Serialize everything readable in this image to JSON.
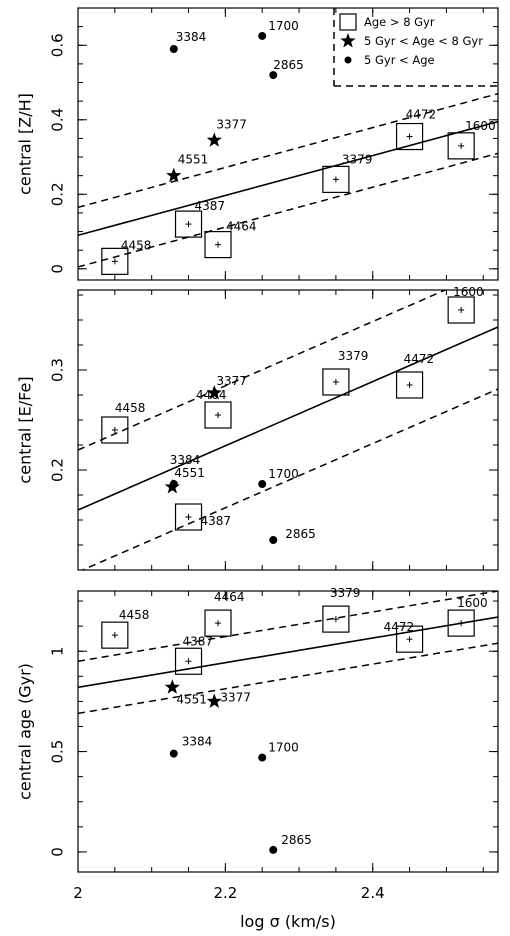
{
  "chart_data": [
    {
      "type": "scatter",
      "title": "",
      "xlabel": "log σ (km/s)",
      "ylabel": "central [Z/H]",
      "xlim": [
        2.0,
        2.57
      ],
      "ylim": [
        -0.03,
        0.7
      ],
      "xticks": [
        {
          "value": 2.0,
          "label": ""
        },
        {
          "value": 2.2,
          "label": ""
        },
        {
          "value": 2.4,
          "label": ""
        }
      ],
      "yticks": [
        {
          "value": 0.0,
          "label": "0"
        },
        {
          "value": 0.2,
          "label": "0.2"
        },
        {
          "value": 0.4,
          "label": "0.4"
        },
        {
          "value": 0.6,
          "label": "0.6"
        }
      ],
      "legend": {
        "placement": "top-right",
        "entries": [
          {
            "marker": "square",
            "label": "Age > 8 Gyr"
          },
          {
            "marker": "star",
            "label": "5 Gyr < Age < 8 Gyr"
          },
          {
            "marker": "dot",
            "label": "5 Gyr < Age"
          }
        ]
      },
      "fit": {
        "x": [
          2.0,
          2.57
        ],
        "y": [
          0.09,
          0.395
        ]
      },
      "scatter_band": [
        {
          "x": [
            2.0,
            2.57
          ],
          "y": [
            0.165,
            0.47
          ]
        },
        {
          "x": [
            2.0,
            2.57
          ],
          "y": [
            0.005,
            0.31
          ]
        }
      ],
      "points": [
        {
          "id": "4458",
          "x": 2.05,
          "y": 0.02,
          "marker": "square"
        },
        {
          "id": "4387",
          "x": 2.15,
          "y": 0.12,
          "marker": "square"
        },
        {
          "id": "4464",
          "x": 2.19,
          "y": 0.065,
          "marker": "square"
        },
        {
          "id": "3379",
          "x": 2.35,
          "y": 0.24,
          "marker": "square"
        },
        {
          "id": "4472",
          "x": 2.45,
          "y": 0.355,
          "marker": "square"
        },
        {
          "id": "1600",
          "x": 2.52,
          "y": 0.33,
          "marker": "square"
        },
        {
          "id": "4551",
          "x": 2.13,
          "y": 0.25,
          "marker": "star"
        },
        {
          "id": "3377",
          "x": 2.185,
          "y": 0.345,
          "marker": "star"
        },
        {
          "id": "3384",
          "x": 2.13,
          "y": 0.59,
          "marker": "dot"
        },
        {
          "id": "1700",
          "x": 2.25,
          "y": 0.625,
          "marker": "dot"
        },
        {
          "id": "2865",
          "x": 2.265,
          "y": 0.52,
          "marker": "dot"
        }
      ]
    },
    {
      "type": "scatter",
      "title": "",
      "xlabel": "log σ (km/s)",
      "ylabel": "central [E/Fe]",
      "xlim": [
        2.0,
        2.57
      ],
      "ylim": [
        0.1,
        0.38
      ],
      "xticks": [
        {
          "value": 2.0,
          "label": ""
        },
        {
          "value": 2.2,
          "label": ""
        },
        {
          "value": 2.4,
          "label": ""
        }
      ],
      "yticks": [
        {
          "value": 0.2,
          "label": "0.2"
        },
        {
          "value": 0.3,
          "label": "0.3"
        }
      ],
      "fit": {
        "x": [
          2.0,
          2.57
        ],
        "y": [
          0.16,
          0.343
        ]
      },
      "scatter_band": [
        {
          "x": [
            2.0,
            2.57
          ],
          "y": [
            0.22,
            0.403
          ]
        },
        {
          "x": [
            2.0,
            2.57
          ],
          "y": [
            0.098,
            0.281
          ]
        }
      ],
      "points": [
        {
          "id": "4458",
          "x": 2.05,
          "y": 0.24,
          "marker": "square"
        },
        {
          "id": "4387",
          "x": 2.15,
          "y": 0.153,
          "marker": "square"
        },
        {
          "id": "4464",
          "x": 2.19,
          "y": 0.255,
          "marker": "square"
        },
        {
          "id": "3379",
          "x": 2.35,
          "y": 0.288,
          "marker": "square"
        },
        {
          "id": "4472",
          "x": 2.45,
          "y": 0.285,
          "marker": "square"
        },
        {
          "id": "1600",
          "x": 2.52,
          "y": 0.36,
          "marker": "square"
        },
        {
          "id": "4551",
          "x": 2.128,
          "y": 0.183,
          "marker": "star"
        },
        {
          "id": "3377",
          "x": 2.185,
          "y": 0.277,
          "marker": "star"
        },
        {
          "id": "3384",
          "x": 2.13,
          "y": 0.186,
          "marker": "dot"
        },
        {
          "id": "1700",
          "x": 2.25,
          "y": 0.186,
          "marker": "dot"
        },
        {
          "id": "2865",
          "x": 2.265,
          "y": 0.13,
          "marker": "dot"
        }
      ]
    },
    {
      "type": "scatter",
      "title": "",
      "xlabel": "log σ (km/s)",
      "ylabel": "central age (Gyr)",
      "xlim": [
        2.0,
        2.57
      ],
      "ylim": [
        -0.1,
        1.3
      ],
      "xticks": [
        {
          "value": 2.0,
          "label": "2"
        },
        {
          "value": 2.2,
          "label": "2.2"
        },
        {
          "value": 2.4,
          "label": "2.4"
        }
      ],
      "yticks": [
        {
          "value": 0.0,
          "label": "0"
        },
        {
          "value": 0.5,
          "label": "0.5"
        },
        {
          "value": 1.0,
          "label": "1"
        }
      ],
      "fit": {
        "x": [
          2.0,
          2.57
        ],
        "y": [
          0.82,
          1.17
        ]
      },
      "scatter_band": [
        {
          "x": [
            2.0,
            2.57
          ],
          "y": [
            0.95,
            1.3
          ]
        },
        {
          "x": [
            2.0,
            2.57
          ],
          "y": [
            0.69,
            1.04
          ]
        }
      ],
      "points": [
        {
          "id": "4458",
          "x": 2.05,
          "y": 1.08,
          "marker": "square"
        },
        {
          "id": "4387",
          "x": 2.15,
          "y": 0.95,
          "marker": "square"
        },
        {
          "id": "4464",
          "x": 2.19,
          "y": 1.14,
          "marker": "square"
        },
        {
          "id": "3379",
          "x": 2.35,
          "y": 1.16,
          "marker": "square"
        },
        {
          "id": "4472",
          "x": 2.45,
          "y": 1.06,
          "marker": "square"
        },
        {
          "id": "1600",
          "x": 2.52,
          "y": 1.14,
          "marker": "square"
        },
        {
          "id": "4551",
          "x": 2.128,
          "y": 0.82,
          "marker": "star"
        },
        {
          "id": "3377",
          "x": 2.185,
          "y": 0.75,
          "marker": "star"
        },
        {
          "id": "3384",
          "x": 2.13,
          "y": 0.49,
          "marker": "dot"
        },
        {
          "id": "1700",
          "x": 2.25,
          "y": 0.47,
          "marker": "dot"
        },
        {
          "id": "2865",
          "x": 2.265,
          "y": 0.01,
          "marker": "dot"
        }
      ]
    }
  ]
}
